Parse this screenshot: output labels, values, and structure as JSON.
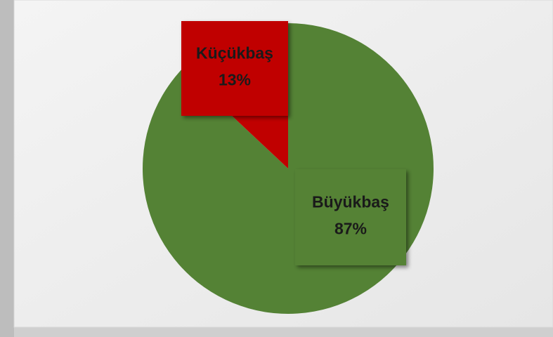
{
  "chart_data": {
    "type": "pie",
    "categories": [
      "Büyükbaş",
      "Küçükbaş"
    ],
    "values": [
      87,
      13
    ],
    "value_labels": [
      "87%",
      "13%"
    ],
    "colors": [
      "#548235",
      "#c00000"
    ]
  }
}
